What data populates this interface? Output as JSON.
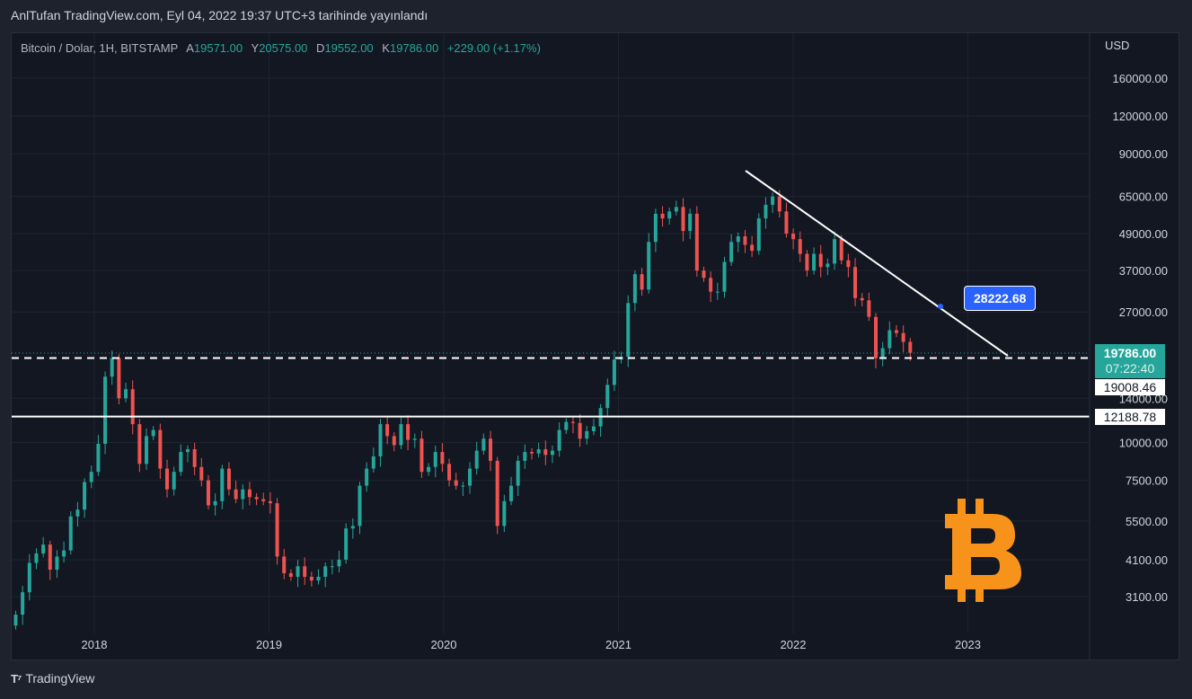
{
  "header": {
    "published": "AnlTufan TradingView.com, Eyl 04, 2022 19:37 UTC+3 tarihinde yayınlandı"
  },
  "legend": {
    "symbol": "Bitcoin / Dolar, 1H, BITSTAMP",
    "open_label": "A",
    "open": "19571.00",
    "high_label": "Y",
    "high": "20575.00",
    "low_label": "D",
    "low": "19552.00",
    "close_label": "K",
    "close": "19786.00",
    "change": "+229.00 (+1.17%)"
  },
  "price_axis": {
    "currency": "USD",
    "ticks": [
      "160000.00",
      "120000.00",
      "90000.00",
      "65000.00",
      "49000.00",
      "37000.00",
      "27000.00",
      "14000.00",
      "10000.00",
      "7500.00",
      "5500.00",
      "4100.00",
      "3100.00"
    ],
    "tick_values": [
      160000,
      120000,
      90000,
      65000,
      49000,
      37000,
      27000,
      14000,
      10000,
      7500,
      5500,
      4100,
      3100
    ],
    "current_price": "19786.00",
    "countdown": "07:22:40",
    "level_1_label": "19008.46",
    "level_2_label": "12188.78"
  },
  "time_axis": {
    "ticks": [
      "2018",
      "2019",
      "2020",
      "2021",
      "2022",
      "2023"
    ],
    "tick_values": [
      2018,
      2019,
      2020,
      2021,
      2022,
      2023
    ]
  },
  "annotation": {
    "trendline_label": "28222.68"
  },
  "colors": {
    "up": "#26a69a",
    "down": "#ef5350",
    "label": "#2962ff",
    "btc": "#f7931a"
  },
  "chart_data": {
    "type": "candlestick",
    "scale": "log",
    "x_start": 2017.55,
    "x_end": 2022.67,
    "closes": [
      2700,
      3200,
      4000,
      4300,
      4600,
      3800,
      4200,
      4400,
      5700,
      6000,
      7400,
      8000,
      9900,
      16500,
      19000,
      14000,
      15000,
      11500,
      8500,
      10500,
      11000,
      8200,
      7000,
      8000,
      9300,
      9500,
      8300,
      7500,
      6200,
      6400,
      8200,
      7000,
      6500,
      7000,
      6600,
      6500,
      6400,
      6300,
      4200,
      3700,
      3600,
      3900,
      3600,
      3500,
      3600,
      3900,
      3900,
      4100,
      5200,
      5300,
      7200,
      8200,
      9000,
      11500,
      10500,
      9800,
      11500,
      10200,
      10300,
      8000,
      8300,
      9300,
      8500,
      7500,
      7200,
      7200,
      8200,
      9400,
      10300,
      8700,
      5300,
      6400,
      7200,
      8700,
      9300,
      9200,
      9500,
      9100,
      9400,
      11000,
      11700,
      11600,
      10300,
      10900,
      11300,
      13000,
      15500,
      18800,
      19200,
      28900,
      36000,
      32000,
      46000,
      57000,
      55000,
      58000,
      60000,
      50000,
      57000,
      37000,
      35000,
      31500,
      31500,
      39500,
      46000,
      48000,
      45000,
      43000,
      55000,
      61000,
      65000,
      58000,
      49000,
      47000,
      42000,
      37000,
      42000,
      38000,
      39000,
      47000,
      40000,
      38000,
      30000,
      29500,
      26000,
      19000,
      20500,
      23500,
      23000,
      21500,
      19786
    ],
    "horizontal_levels": [
      19008.46,
      12188.78
    ],
    "trendline_value": 28222.68
  },
  "footer": {
    "brand": "TradingView"
  }
}
